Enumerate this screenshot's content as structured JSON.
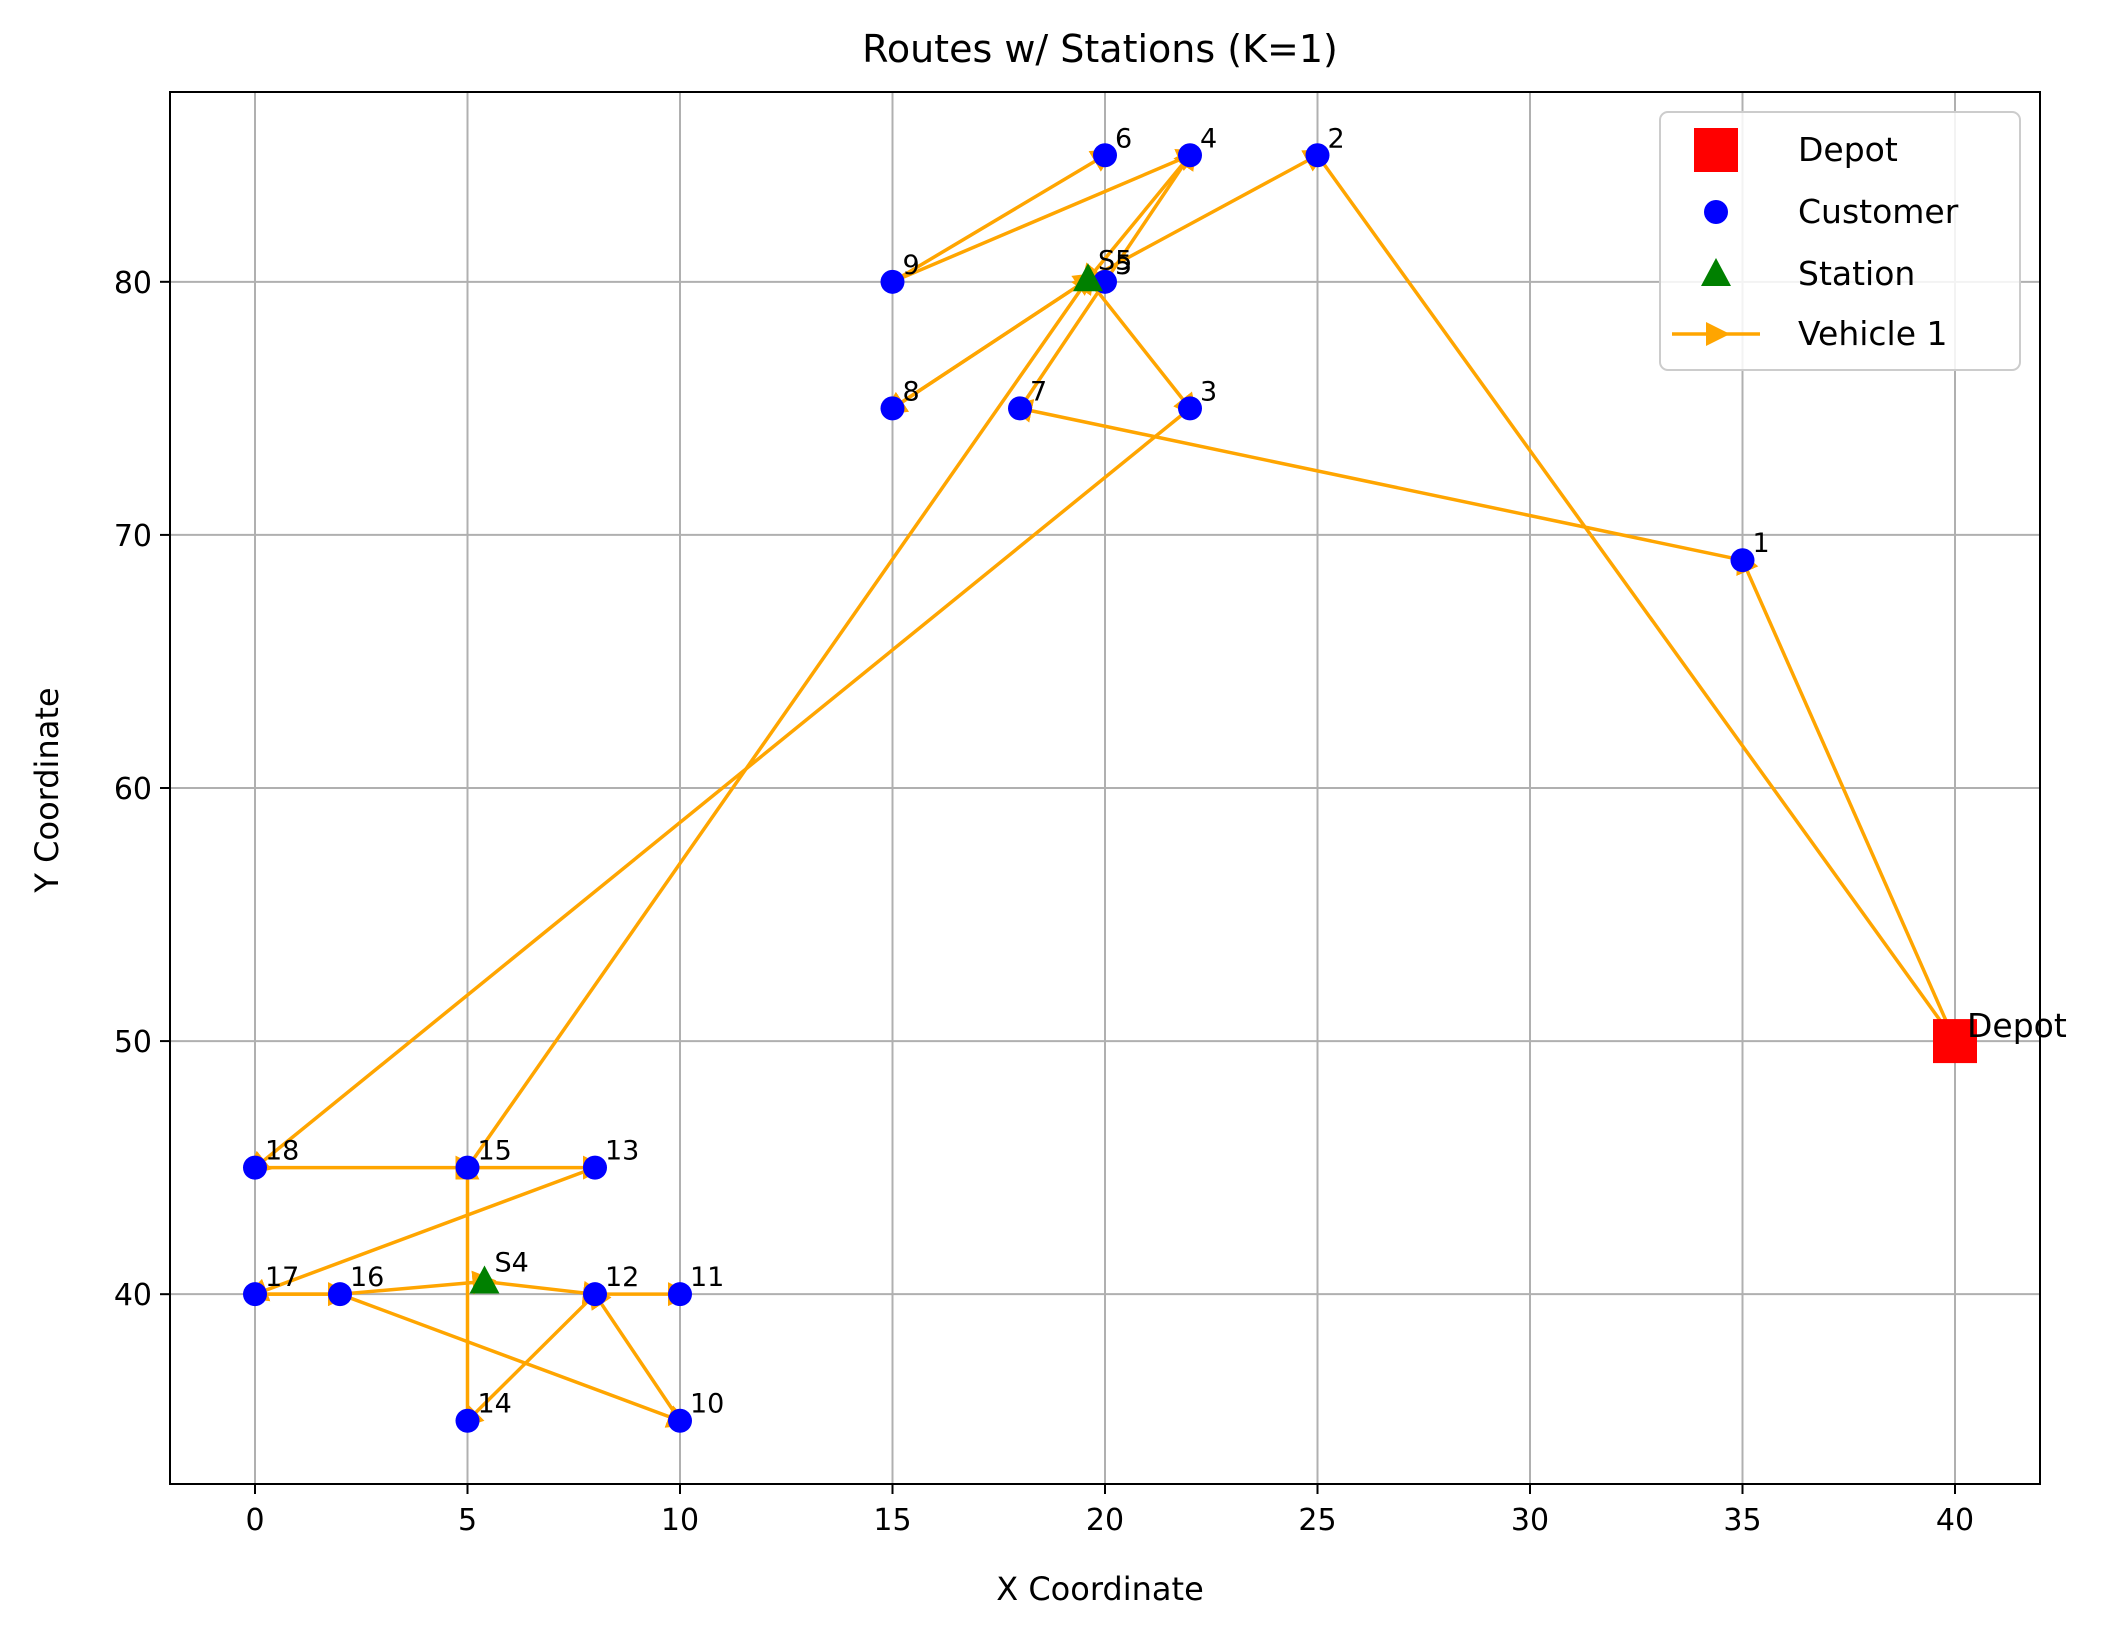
{
  "chart_data": {
    "type": "scatter",
    "title": "Routes w/ Stations (K=1)",
    "xlabel": "X Coordinate",
    "ylabel": "Y Coordinate",
    "xlim": [
      -2,
      42
    ],
    "ylim": [
      32.5,
      87.5
    ],
    "xticks": [
      0,
      5,
      10,
      15,
      20,
      25,
      30,
      35,
      40
    ],
    "yticks": [
      40,
      50,
      60,
      70,
      80
    ],
    "grid": true,
    "legend_position": "top-right",
    "legend": {
      "depot": "Depot",
      "customer": "Customer",
      "station": "Station",
      "vehicle": "Vehicle 1"
    },
    "colors": {
      "depot": "#ff0000",
      "customer": "#0000ff",
      "station": "#008000",
      "route": "#ffa500",
      "grid": "#b0b0b0"
    },
    "depot": {
      "label": "Depot",
      "x": 40,
      "y": 50
    },
    "customers": [
      {
        "label": "1",
        "x": 35,
        "y": 69
      },
      {
        "label": "2",
        "x": 25,
        "y": 85
      },
      {
        "label": "3",
        "x": 22,
        "y": 75
      },
      {
        "label": "4",
        "x": 22,
        "y": 85
      },
      {
        "label": "5",
        "x": 20,
        "y": 80
      },
      {
        "label": "6",
        "x": 20,
        "y": 85
      },
      {
        "label": "7",
        "x": 18,
        "y": 75
      },
      {
        "label": "8",
        "x": 15,
        "y": 75
      },
      {
        "label": "9",
        "x": 15,
        "y": 80
      },
      {
        "label": "10",
        "x": 10,
        "y": 35
      },
      {
        "label": "11",
        "x": 10,
        "y": 40
      },
      {
        "label": "12",
        "x": 8,
        "y": 40
      },
      {
        "label": "13",
        "x": 8,
        "y": 45
      },
      {
        "label": "14",
        "x": 5,
        "y": 35
      },
      {
        "label": "15",
        "x": 5,
        "y": 45
      },
      {
        "label": "16",
        "x": 2,
        "y": 40
      },
      {
        "label": "17",
        "x": 0,
        "y": 40
      },
      {
        "label": "18",
        "x": 0,
        "y": 45
      }
    ],
    "stations": [
      {
        "label": "S5",
        "x": 19.6,
        "y": 80.1
      },
      {
        "label": "S4",
        "x": 5.4,
        "y": 40.5
      }
    ],
    "route": {
      "name": "Vehicle 1",
      "points": [
        [
          40,
          50
        ],
        [
          35,
          69
        ],
        [
          18,
          75
        ],
        [
          22,
          85
        ],
        [
          19.6,
          80.1
        ],
        [
          22,
          75
        ],
        [
          0,
          45
        ],
        [
          5,
          45
        ],
        [
          8,
          45
        ],
        [
          0,
          40
        ],
        [
          2,
          40
        ],
        [
          10,
          35
        ],
        [
          8,
          40
        ],
        [
          5,
          35
        ],
        [
          5,
          45
        ],
        [
          19.6,
          80.1
        ],
        [
          15,
          75
        ],
        [
          19.6,
          80.1
        ],
        [
          25,
          85
        ],
        [
          40,
          50
        ]
      ]
    },
    "extra_segments": [
      {
        "from": [
          15,
          80
        ],
        "to": [
          20,
          85
        ]
      },
      {
        "from": [
          15,
          80
        ],
        "to": [
          22,
          85
        ]
      },
      {
        "from": [
          2,
          40
        ],
        "to": [
          5.4,
          40.5
        ]
      },
      {
        "from": [
          5.4,
          40.5
        ],
        "to": [
          8,
          40
        ]
      },
      {
        "from": [
          8,
          40
        ],
        "to": [
          10,
          40
        ]
      },
      {
        "from": [
          0,
          40
        ],
        "to": [
          2,
          40
        ]
      }
    ]
  }
}
